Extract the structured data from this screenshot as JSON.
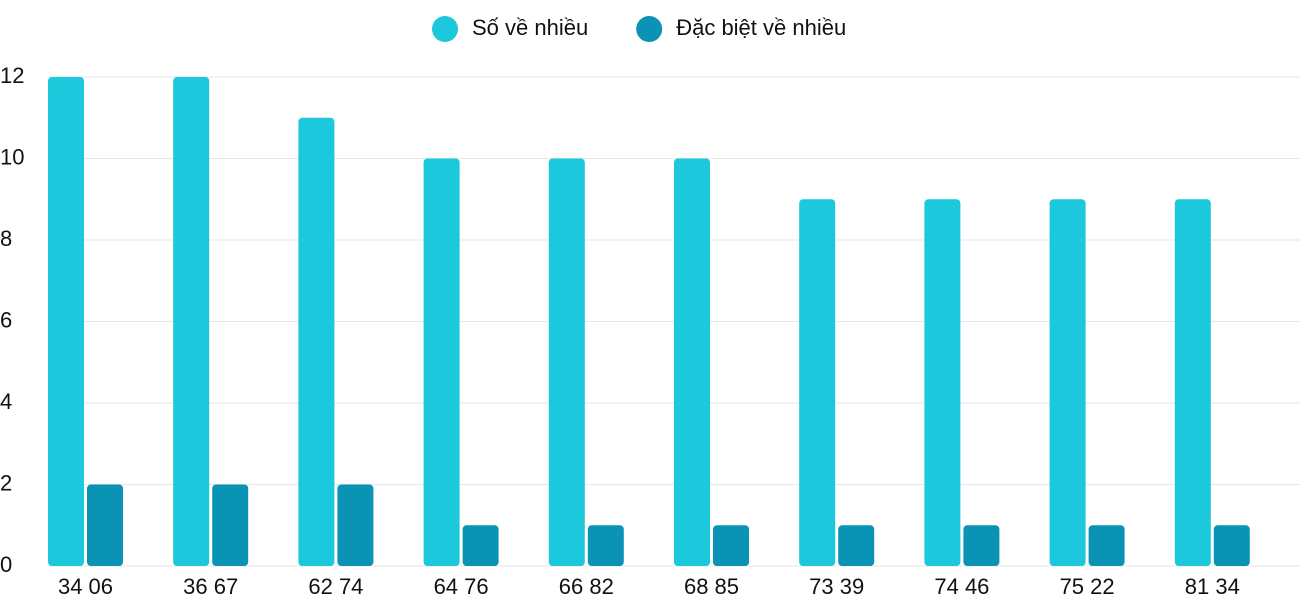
{
  "chart_data": {
    "type": "grouped-bar",
    "categories": [
      "34 06",
      "36 67",
      "62 74",
      "64 76",
      "66 82",
      "68 85",
      "73 39",
      "74 46",
      "75 22",
      "81 34"
    ],
    "series": [
      {
        "name": "Số về nhiều",
        "color": "#1bc8dc",
        "values": [
          12,
          12,
          11,
          10,
          10,
          10,
          9,
          9,
          9,
          9
        ]
      },
      {
        "name": "Đặc biệt về nhiều",
        "color": "#0a93b5",
        "values": [
          2,
          2,
          2,
          1,
          1,
          1,
          1,
          1,
          1,
          1
        ]
      }
    ],
    "ylim": [
      0,
      12
    ],
    "yticks": [
      0,
      2,
      4,
      6,
      8,
      10,
      12
    ],
    "grid": true,
    "legend": "top"
  }
}
